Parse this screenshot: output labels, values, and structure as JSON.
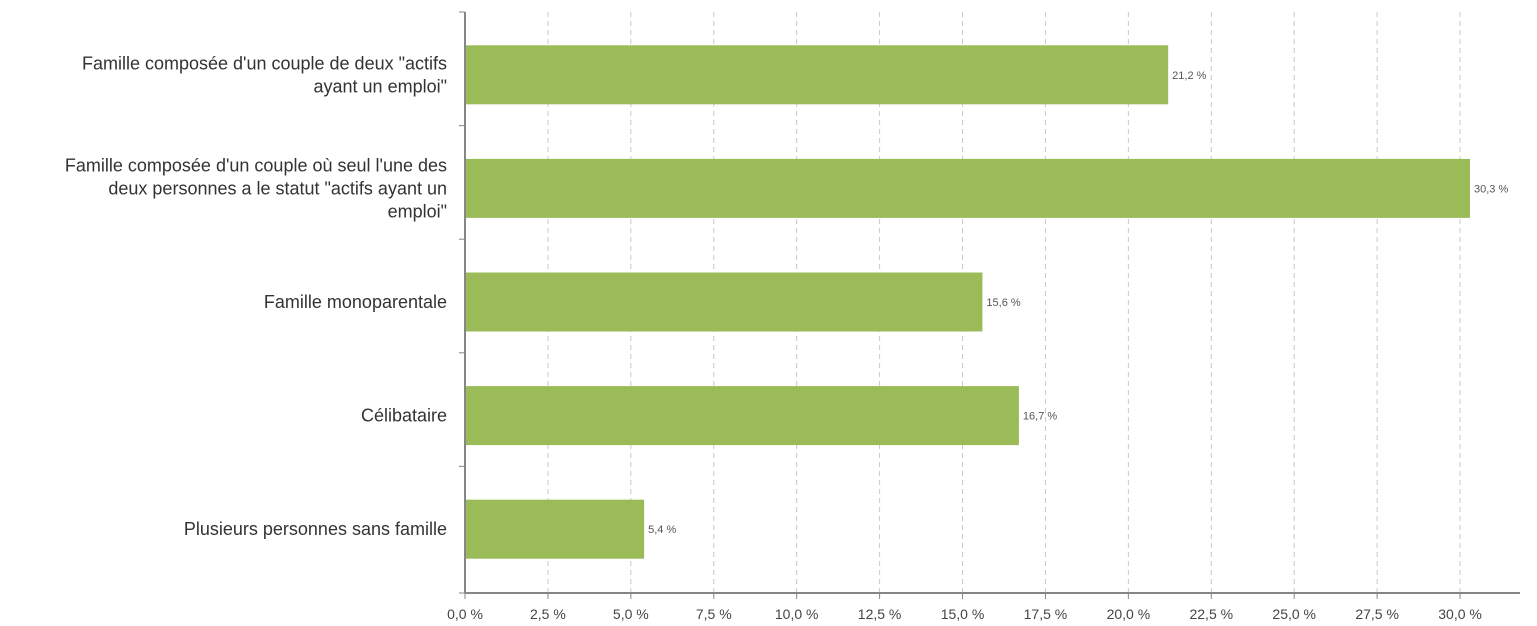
{
  "chart_data": {
    "type": "bar",
    "orientation": "horizontal",
    "categories": [
      "Famille composée d'un couple de deux \"actifs ayant un emploi\"",
      "Famille composée d'un couple où seul l'une des deux personnes a le statut \"actifs ayant un emploi\"",
      "Famille monoparentale",
      "Célibataire",
      "Plusieurs personnes sans famille"
    ],
    "category_lines": [
      [
        "Famille composée d'un couple de deux \"actifs",
        "ayant un emploi\""
      ],
      [
        "Famille composée d'un couple où seul l'une des",
        "deux personnes a le statut \"actifs ayant un",
        "emploi\""
      ],
      [
        "Famille monoparentale"
      ],
      [
        "Célibataire"
      ],
      [
        "Plusieurs personnes sans famille"
      ]
    ],
    "values": [
      21.2,
      30.3,
      15.6,
      16.7,
      5.4
    ],
    "data_labels": [
      "21,2 %",
      "30,3 %",
      "15,6 %",
      "16,7 %",
      "5,4 %"
    ],
    "xlim": [
      0,
      31.5
    ],
    "ticks": [
      0,
      2.5,
      5,
      7.5,
      10,
      12.5,
      15,
      17.5,
      20,
      22.5,
      25,
      27.5,
      30
    ],
    "tick_labels": [
      "0,0 %",
      "2,5 %",
      "5,0 %",
      "7,5 %",
      "10,0 %",
      "12,5 %",
      "15,0 %",
      "17,5 %",
      "20,0 %",
      "22,5 %",
      "25,0 %",
      "27,5 %",
      "30,0 %"
    ],
    "grid": true,
    "grid_style": "dashed vertical",
    "bar_color": "#9bbb59",
    "title": "",
    "xlabel": "",
    "ylabel": ""
  }
}
